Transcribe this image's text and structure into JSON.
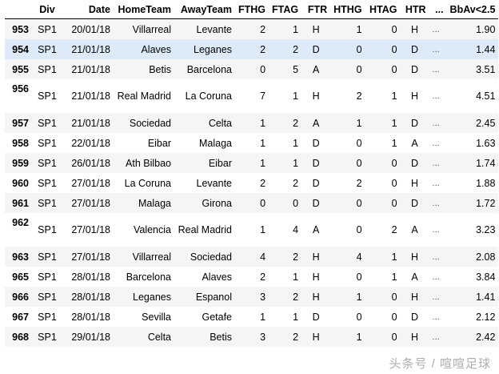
{
  "columns": [
    "",
    "Div",
    "Date",
    "HomeTeam",
    "AwayTeam",
    "FTHG",
    "FTAG",
    "FTR",
    "HTHG",
    "HTAG",
    "HTR",
    "...",
    "BbAv<2.5"
  ],
  "rows": [
    [
      "953",
      "SP1",
      "20/01/18",
      "Villarreal",
      "Levante",
      "2",
      "1",
      "H",
      "1",
      "0",
      "H",
      "...",
      "1.90"
    ],
    [
      "954",
      "SP1",
      "21/01/18",
      "Alaves",
      "Leganes",
      "2",
      "2",
      "D",
      "0",
      "0",
      "D",
      "...",
      "1.44"
    ],
    [
      "955",
      "SP1",
      "21/01/18",
      "Betis",
      "Barcelona",
      "0",
      "5",
      "A",
      "0",
      "0",
      "D",
      "...",
      "3.51"
    ],
    [
      "956",
      "SP1",
      "21/01/18",
      "Real Madrid",
      "La Coruna",
      "7",
      "1",
      "H",
      "2",
      "1",
      "H",
      "...",
      "4.51"
    ],
    [
      "957",
      "SP1",
      "21/01/18",
      "Sociedad",
      "Celta",
      "1",
      "2",
      "A",
      "1",
      "1",
      "D",
      "...",
      "2.45"
    ],
    [
      "958",
      "SP1",
      "22/01/18",
      "Eibar",
      "Malaga",
      "1",
      "1",
      "D",
      "0",
      "1",
      "A",
      "...",
      "1.63"
    ],
    [
      "959",
      "SP1",
      "26/01/18",
      "Ath Bilbao",
      "Eibar",
      "1",
      "1",
      "D",
      "0",
      "0",
      "D",
      "...",
      "1.74"
    ],
    [
      "960",
      "SP1",
      "27/01/18",
      "La Coruna",
      "Levante",
      "2",
      "2",
      "D",
      "2",
      "0",
      "H",
      "...",
      "1.88"
    ],
    [
      "961",
      "SP1",
      "27/01/18",
      "Malaga",
      "Girona",
      "0",
      "0",
      "D",
      "0",
      "0",
      "D",
      "...",
      "1.72"
    ],
    [
      "962",
      "SP1",
      "27/01/18",
      "Valencia",
      "Real Madrid",
      "1",
      "4",
      "A",
      "0",
      "2",
      "A",
      "...",
      "3.23"
    ],
    [
      "963",
      "SP1",
      "27/01/18",
      "Villarreal",
      "Sociedad",
      "4",
      "2",
      "H",
      "4",
      "1",
      "H",
      "...",
      "2.08"
    ],
    [
      "965",
      "SP1",
      "28/01/18",
      "Barcelona",
      "Alaves",
      "2",
      "1",
      "H",
      "0",
      "1",
      "A",
      "...",
      "3.84"
    ],
    [
      "966",
      "SP1",
      "28/01/18",
      "Leganes",
      "Espanol",
      "3",
      "2",
      "H",
      "1",
      "0",
      "H",
      "...",
      "1.41"
    ],
    [
      "967",
      "SP1",
      "28/01/18",
      "Sevilla",
      "Getafe",
      "1",
      "1",
      "D",
      "0",
      "0",
      "D",
      "...",
      "2.12"
    ],
    [
      "968",
      "SP1",
      "29/01/18",
      "Celta",
      "Betis",
      "3",
      "2",
      "H",
      "1",
      "0",
      "H",
      "...",
      "2.42"
    ]
  ],
  "hovered_row": "954",
  "watermark": "头条号 / 喧喧足球",
  "colors": {
    "stripe": "#f5f5f5",
    "hover": "#dcebf7"
  }
}
